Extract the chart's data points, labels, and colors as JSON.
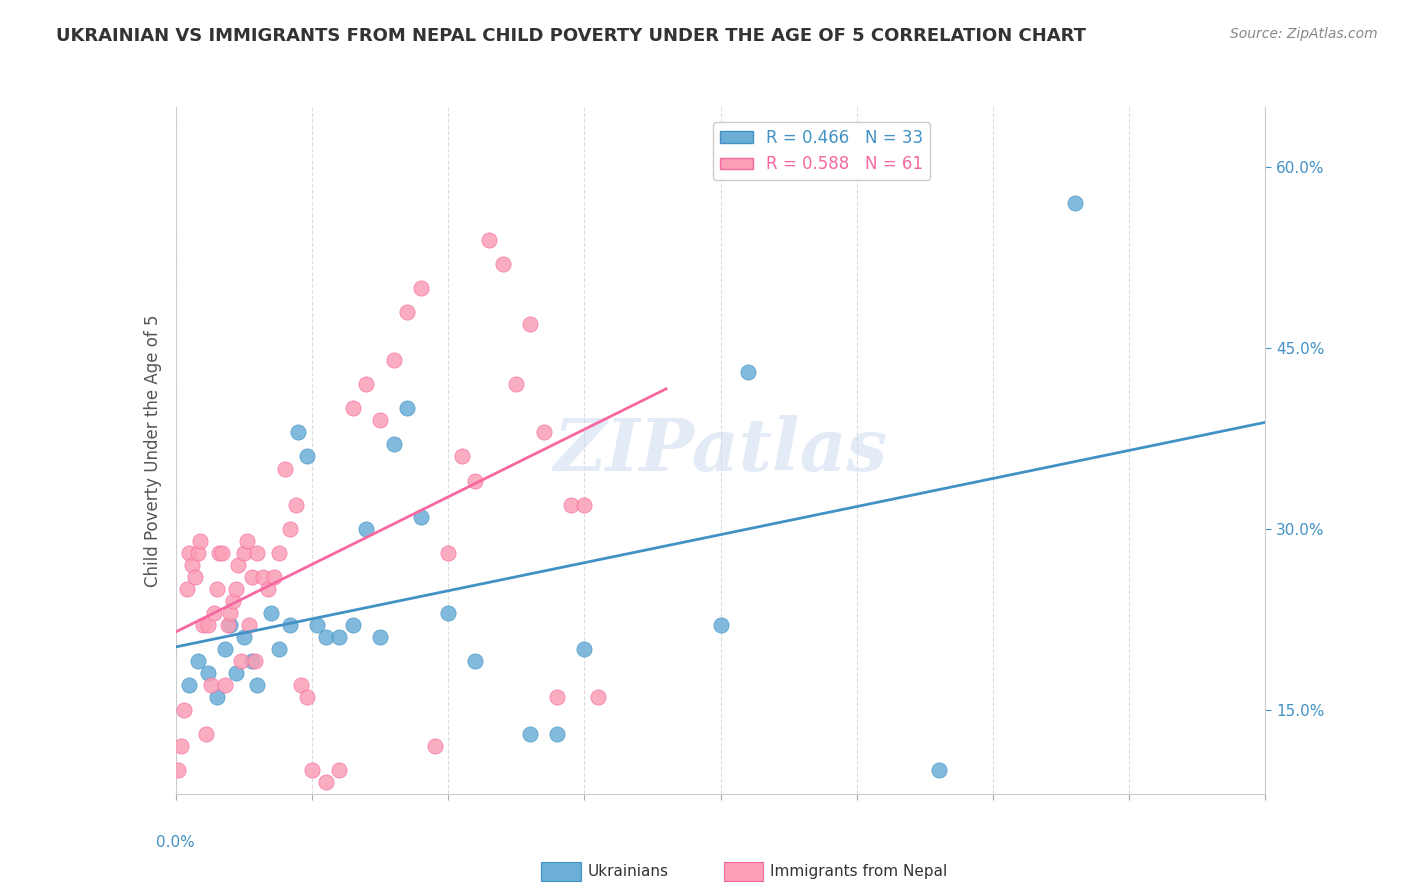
{
  "title": "UKRAINIAN VS IMMIGRANTS FROM NEPAL CHILD POVERTY UNDER THE AGE OF 5 CORRELATION CHART",
  "source": "Source: ZipAtlas.com",
  "ylabel": "Child Poverty Under the Age of 5",
  "y_ticks": [
    0.15,
    0.3,
    0.45,
    0.6
  ],
  "y_tick_labels": [
    "15.0%",
    "30.0%",
    "45.0%",
    "60.0%"
  ],
  "x_ticks": [
    0.0,
    0.05,
    0.1,
    0.15,
    0.2,
    0.25,
    0.3,
    0.35,
    0.4
  ],
  "watermark": "ZIPatlas",
  "legend1_label": "R = 0.466   N = 33",
  "legend2_label": "R = 0.588   N = 61",
  "blue_color": "#6baed6",
  "pink_color": "#fa9fb5",
  "blue_line_color": "#4292c6",
  "pink_line_color": "#f768a1",
  "title_color": "#333333",
  "source_color": "#888888",
  "axis_label_color": "#555555",
  "tick_color": "#4292c6",
  "blue_scatter_x": [
    0.005,
    0.008,
    0.012,
    0.015,
    0.018,
    0.02,
    0.022,
    0.025,
    0.028,
    0.03,
    0.035,
    0.038,
    0.042,
    0.045,
    0.048,
    0.052,
    0.055,
    0.06,
    0.065,
    0.07,
    0.075,
    0.08,
    0.085,
    0.09,
    0.1,
    0.11,
    0.13,
    0.14,
    0.15,
    0.2,
    0.21,
    0.28,
    0.33
  ],
  "blue_scatter_y": [
    0.17,
    0.19,
    0.18,
    0.16,
    0.2,
    0.22,
    0.18,
    0.21,
    0.19,
    0.17,
    0.23,
    0.2,
    0.22,
    0.38,
    0.36,
    0.22,
    0.21,
    0.21,
    0.22,
    0.3,
    0.21,
    0.37,
    0.4,
    0.31,
    0.23,
    0.19,
    0.13,
    0.13,
    0.2,
    0.22,
    0.43,
    0.1,
    0.57
  ],
  "pink_scatter_x": [
    0.001,
    0.002,
    0.003,
    0.004,
    0.005,
    0.006,
    0.007,
    0.008,
    0.009,
    0.01,
    0.011,
    0.012,
    0.013,
    0.014,
    0.015,
    0.016,
    0.017,
    0.018,
    0.019,
    0.02,
    0.021,
    0.022,
    0.023,
    0.024,
    0.025,
    0.026,
    0.027,
    0.028,
    0.029,
    0.03,
    0.032,
    0.034,
    0.036,
    0.038,
    0.04,
    0.042,
    0.044,
    0.046,
    0.048,
    0.05,
    0.055,
    0.06,
    0.065,
    0.07,
    0.075,
    0.08,
    0.085,
    0.09,
    0.095,
    0.1,
    0.105,
    0.11,
    0.115,
    0.12,
    0.125,
    0.13,
    0.135,
    0.14,
    0.145,
    0.15,
    0.155
  ],
  "pink_scatter_y": [
    0.1,
    0.12,
    0.15,
    0.25,
    0.28,
    0.27,
    0.26,
    0.28,
    0.29,
    0.22,
    0.13,
    0.22,
    0.17,
    0.23,
    0.25,
    0.28,
    0.28,
    0.17,
    0.22,
    0.23,
    0.24,
    0.25,
    0.27,
    0.19,
    0.28,
    0.29,
    0.22,
    0.26,
    0.19,
    0.28,
    0.26,
    0.25,
    0.26,
    0.28,
    0.35,
    0.3,
    0.32,
    0.17,
    0.16,
    0.1,
    0.09,
    0.1,
    0.4,
    0.42,
    0.39,
    0.44,
    0.48,
    0.5,
    0.12,
    0.28,
    0.36,
    0.34,
    0.54,
    0.52,
    0.42,
    0.47,
    0.38,
    0.16,
    0.32,
    0.32,
    0.16
  ],
  "blue_trend_x_end": 0.4,
  "pink_trend_x_end": 0.18,
  "xlim": [
    0.0,
    0.4
  ],
  "ylim": [
    0.08,
    0.65
  ]
}
